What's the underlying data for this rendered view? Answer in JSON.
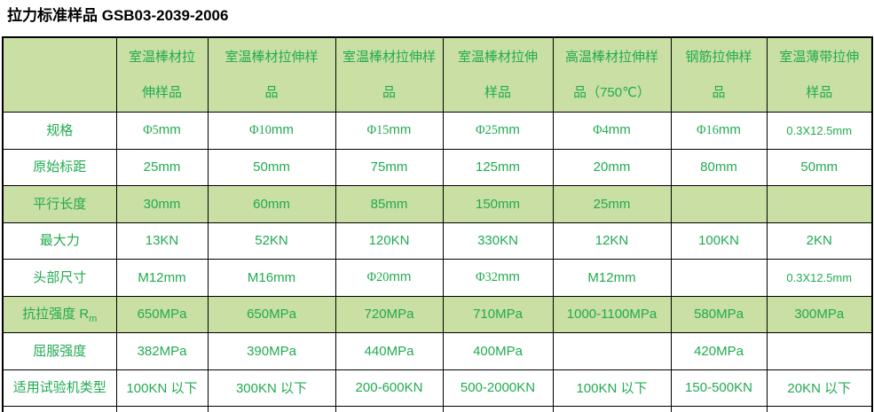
{
  "title": "拉力标准样品 GSB03-2039-2006",
  "colors": {
    "header_bg": "#c9dfa4",
    "stripe_bg": "#c9dfa4",
    "green_text": "#21ab50",
    "border": "#000000",
    "title_text": "#000000"
  },
  "table": {
    "columns": [
      {
        "label": ""
      },
      {
        "label": "室温棒材拉\n伸样品"
      },
      {
        "label": "室温棒材拉伸样\n品"
      },
      {
        "label": "室温棒材拉伸样\n品"
      },
      {
        "label": "室温棒材拉伸\n样品"
      },
      {
        "label": "高温棒材拉伸样\n品（750℃）"
      },
      {
        "label": "钢筋拉伸样\n品"
      },
      {
        "label": "室温薄带拉伸\n样品"
      }
    ],
    "rows": [
      {
        "label": "规格",
        "green": false,
        "values": [
          "Φ5mm",
          "Φ10mm",
          "Φ15mm",
          "Φ25mm",
          "Φ4mm",
          "Φ16mm",
          "0.3X12.5mm"
        ]
      },
      {
        "label": "原始标距",
        "green": false,
        "values": [
          "25mm",
          "50mm",
          "75mm",
          "125mm",
          "20mm",
          "80mm",
          "50mm"
        ]
      },
      {
        "label": "平行长度",
        "green": true,
        "values": [
          "30mm",
          "60mm",
          "85mm",
          "150mm",
          "25mm",
          "",
          ""
        ]
      },
      {
        "label": "最大力",
        "green": false,
        "values": [
          "13KN",
          "52KN",
          "120KN",
          "330KN",
          "12KN",
          "100KN",
          "2KN"
        ]
      },
      {
        "label": "头部尺寸",
        "green": false,
        "values": [
          "M12mm",
          "M16mm",
          "Φ20mm",
          "Φ32mm",
          "M12mm",
          "",
          "0.3X12.5mm"
        ]
      },
      {
        "label": "抗拉强度 R",
        "label_sub": "m",
        "green": true,
        "values": [
          "650MPa",
          "650MPa",
          "720MPa",
          "710MPa",
          "1000-1100MPa",
          "580MPa",
          "300MPa"
        ]
      },
      {
        "label": "屈服强度",
        "green": false,
        "values": [
          "382MPa",
          "390MPa",
          "440MPa",
          "400MPa",
          "",
          "420MPa",
          ""
        ]
      },
      {
        "label": "适用试验机类型",
        "green": false,
        "values": [
          "100KN 以下",
          "300KN 以下",
          "200-600KN",
          "500-2000KN",
          "100KN 以下",
          "150-500KN",
          "20KN 以下"
        ]
      }
    ],
    "partial_bottom_row": true
  }
}
